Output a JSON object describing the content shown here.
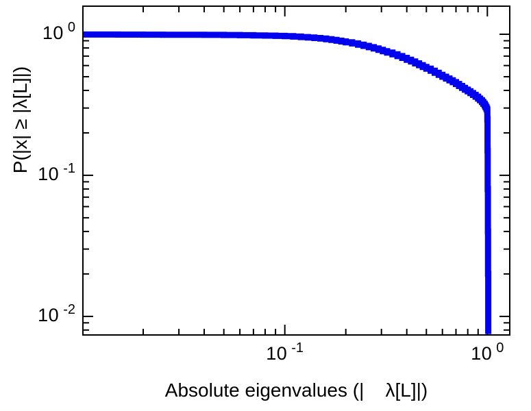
{
  "figure": {
    "background": "#ffffff",
    "frame_color": "#000000",
    "tick_color": "#000000"
  },
  "chart_data": {
    "type": "line",
    "subtype": "empirical-ccdf-step",
    "title": "",
    "xlabel": "Absolute eigenvalues (|    λ[L]|)",
    "ylabel": "P(|x| ≥ |λ[L]|)",
    "xscale": "log",
    "yscale": "log",
    "xlim": [
      0.01,
      1.3
    ],
    "ylim": [
      0.0073,
      1.6
    ],
    "grid": false,
    "legend": null,
    "x_major_ticks": [
      0.01,
      0.1,
      1
    ],
    "x_minor_ticks": [
      0.02,
      0.03,
      0.04,
      0.05,
      0.06,
      0.07,
      0.08,
      0.09,
      0.2,
      0.3,
      0.4,
      0.5,
      0.6,
      0.7,
      0.8,
      0.9
    ],
    "y_major_ticks": [
      0.01,
      0.1,
      1
    ],
    "y_minor_ticks": [
      0.008,
      0.009,
      0.02,
      0.03,
      0.04,
      0.05,
      0.06,
      0.07,
      0.08,
      0.09,
      0.2,
      0.3,
      0.4,
      0.5,
      0.6,
      0.7,
      0.8,
      0.9
    ],
    "x_tick_labels": [
      {
        "value": 0.1,
        "base": "10",
        "exp": "-1"
      },
      {
        "value": 1,
        "base": "10",
        "exp": "0"
      }
    ],
    "y_tick_labels": [
      {
        "value": 1,
        "base": "10",
        "exp": "0"
      },
      {
        "value": 0.1,
        "base": "10",
        "exp": "-1"
      },
      {
        "value": 0.01,
        "base": "10",
        "exp": "-2"
      }
    ],
    "series": [
      {
        "name": "eigenvalue-ccdf",
        "color": "#0202ee",
        "linewidth": 9,
        "step": true,
        "points": [
          [
            0.01,
            0.996
          ],
          [
            0.015,
            0.995
          ],
          [
            0.02,
            0.994
          ],
          [
            0.025,
            0.993
          ],
          [
            0.03,
            0.992
          ],
          [
            0.035,
            0.991
          ],
          [
            0.04,
            0.99
          ],
          [
            0.05,
            0.988
          ],
          [
            0.06,
            0.985
          ],
          [
            0.07,
            0.982
          ],
          [
            0.08,
            0.978
          ],
          [
            0.09,
            0.974
          ],
          [
            0.1,
            0.969
          ],
          [
            0.11,
            0.963
          ],
          [
            0.12,
            0.956
          ],
          [
            0.13,
            0.949
          ],
          [
            0.14,
            0.941
          ],
          [
            0.15,
            0.932
          ],
          [
            0.16,
            0.922
          ],
          [
            0.17,
            0.912
          ],
          [
            0.18,
            0.901
          ],
          [
            0.19,
            0.89
          ],
          [
            0.2,
            0.878
          ],
          [
            0.215,
            0.861
          ],
          [
            0.23,
            0.844
          ],
          [
            0.245,
            0.827
          ],
          [
            0.26,
            0.81
          ],
          [
            0.275,
            0.793
          ],
          [
            0.29,
            0.776
          ],
          [
            0.305,
            0.759
          ],
          [
            0.32,
            0.742
          ],
          [
            0.34,
            0.721
          ],
          [
            0.36,
            0.7
          ],
          [
            0.38,
            0.68
          ],
          [
            0.4,
            0.66
          ],
          [
            0.42,
            0.641
          ],
          [
            0.44,
            0.622
          ],
          [
            0.46,
            0.604
          ],
          [
            0.48,
            0.587
          ],
          [
            0.5,
            0.57
          ],
          [
            0.525,
            0.551
          ],
          [
            0.55,
            0.533
          ],
          [
            0.575,
            0.516
          ],
          [
            0.6,
            0.5
          ],
          [
            0.625,
            0.486
          ],
          [
            0.65,
            0.472
          ],
          [
            0.675,
            0.458
          ],
          [
            0.7,
            0.444
          ],
          [
            0.725,
            0.43
          ],
          [
            0.75,
            0.417
          ],
          [
            0.775,
            0.405
          ],
          [
            0.8,
            0.394
          ],
          [
            0.825,
            0.383
          ],
          [
            0.85,
            0.372
          ],
          [
            0.875,
            0.361
          ],
          [
            0.9,
            0.35
          ],
          [
            0.92,
            0.341
          ],
          [
            0.94,
            0.331
          ],
          [
            0.955,
            0.322
          ],
          [
            0.97,
            0.313
          ],
          [
            0.98,
            0.305
          ],
          [
            0.99,
            0.297
          ],
          [
            0.997,
            0.29
          ],
          [
            1.0,
            0.25
          ],
          [
            1.002,
            0.15
          ],
          [
            1.004,
            0.08
          ],
          [
            1.006,
            0.04
          ],
          [
            1.008,
            0.02
          ],
          [
            1.01,
            0.0075
          ]
        ]
      }
    ]
  }
}
